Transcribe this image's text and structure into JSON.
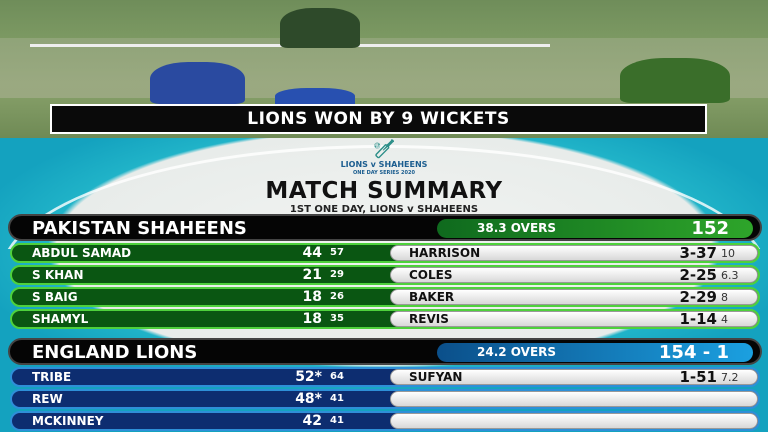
{
  "banner": "LIONS WON BY 9 WICKETS",
  "logo": {
    "line1": "LIONS v SHAHEENS",
    "line2": "ONE DAY SERIES 2020"
  },
  "title": "MATCH SUMMARY",
  "subtitle": "1ST ONE DAY, LIONS v SHAHEENS",
  "colors": {
    "pakistan": "#0a5612",
    "england": "#0d2d70"
  },
  "innings": [
    {
      "team": "PAKISTAN SHAHEENS",
      "overs": "38.3 OVERS",
      "total": "152",
      "batting": [
        {
          "name": "ABDUL SAMAD",
          "runs": "44",
          "balls": "57"
        },
        {
          "name": "S KHAN",
          "runs": "21",
          "balls": "29"
        },
        {
          "name": "S BAIG",
          "runs": "18",
          "balls": "26"
        },
        {
          "name": "SHAMYL",
          "runs": "18",
          "balls": "35"
        }
      ],
      "bowling": [
        {
          "name": "HARRISON",
          "figures": "3-37",
          "overs": "10"
        },
        {
          "name": "COLES",
          "figures": "2-25",
          "overs": "6.3"
        },
        {
          "name": "BAKER",
          "figures": "2-29",
          "overs": "8"
        },
        {
          "name": "REVIS",
          "figures": "1-14",
          "overs": "4"
        }
      ]
    },
    {
      "team": "ENGLAND LIONS",
      "overs": "24.2 OVERS",
      "total": "154 - 1",
      "batting": [
        {
          "name": "TRIBE",
          "runs": "52*",
          "balls": "64"
        },
        {
          "name": "REW",
          "runs": "48*",
          "balls": "41"
        },
        {
          "name": "MCKINNEY",
          "runs": "42",
          "balls": "41"
        }
      ],
      "bowling": [
        {
          "name": "SUFYAN",
          "figures": "1-51",
          "overs": "7.2"
        },
        {
          "name": "",
          "figures": "",
          "overs": ""
        },
        {
          "name": "",
          "figures": "",
          "overs": ""
        }
      ]
    }
  ]
}
